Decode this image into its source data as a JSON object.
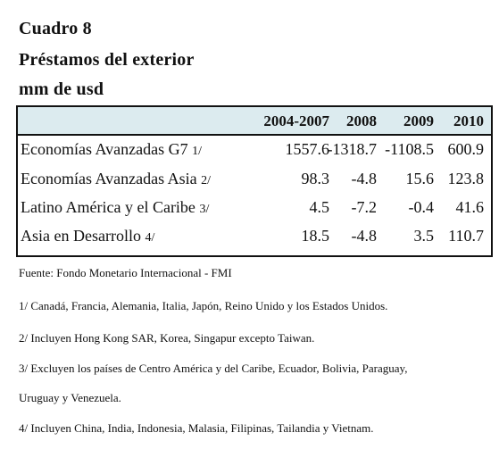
{
  "header": {
    "title": "Cuadro 8",
    "subtitle": "Préstamos del exterior",
    "units": "mm de usd"
  },
  "table": {
    "columns": [
      "2004-2007",
      "2008",
      "2009",
      "2010"
    ],
    "rows": [
      {
        "label": "Economías Avanzadas G7",
        "note": "1/",
        "values": [
          "1557.6",
          "-1318.7",
          "-1108.5",
          "600.9"
        ]
      },
      {
        "label": "Economías Avanzadas Asia",
        "note": "2/",
        "values": [
          "98.3",
          "-4.8",
          "15.6",
          "123.8"
        ]
      },
      {
        "label": "Latino América y el Caribe",
        "note": "3/",
        "values": [
          "4.5",
          "-7.2",
          "-0.4",
          "41.6"
        ]
      },
      {
        "label": "Asia en Desarrollo",
        "note": "4/",
        "values": [
          "18.5",
          "-4.8",
          "3.5",
          "110.7"
        ]
      }
    ]
  },
  "footnotes": {
    "source": "Fuente: Fondo Monetario Internacional - FMI",
    "note1": "1/ Canadá, Francia, Alemania, Italia, Japón, Reino Unido y los Estados Unidos.",
    "note2": "2/ Incluyen Hong Kong SAR, Korea, Singapur excepto Taiwan.",
    "note3_line1": "3/ Excluyen los países de Centro América y del Caribe, Ecuador, Bolivia, Paraguay,",
    "note3_line2": "Uruguay y Venezuela.",
    "note4": "4/ Incluyen China, India, Indonesia, Malasia, Filipinas, Tailandia y Vietnam."
  },
  "colors": {
    "header_fill": "#dcebef",
    "border": "#111111",
    "text": "#111111"
  }
}
